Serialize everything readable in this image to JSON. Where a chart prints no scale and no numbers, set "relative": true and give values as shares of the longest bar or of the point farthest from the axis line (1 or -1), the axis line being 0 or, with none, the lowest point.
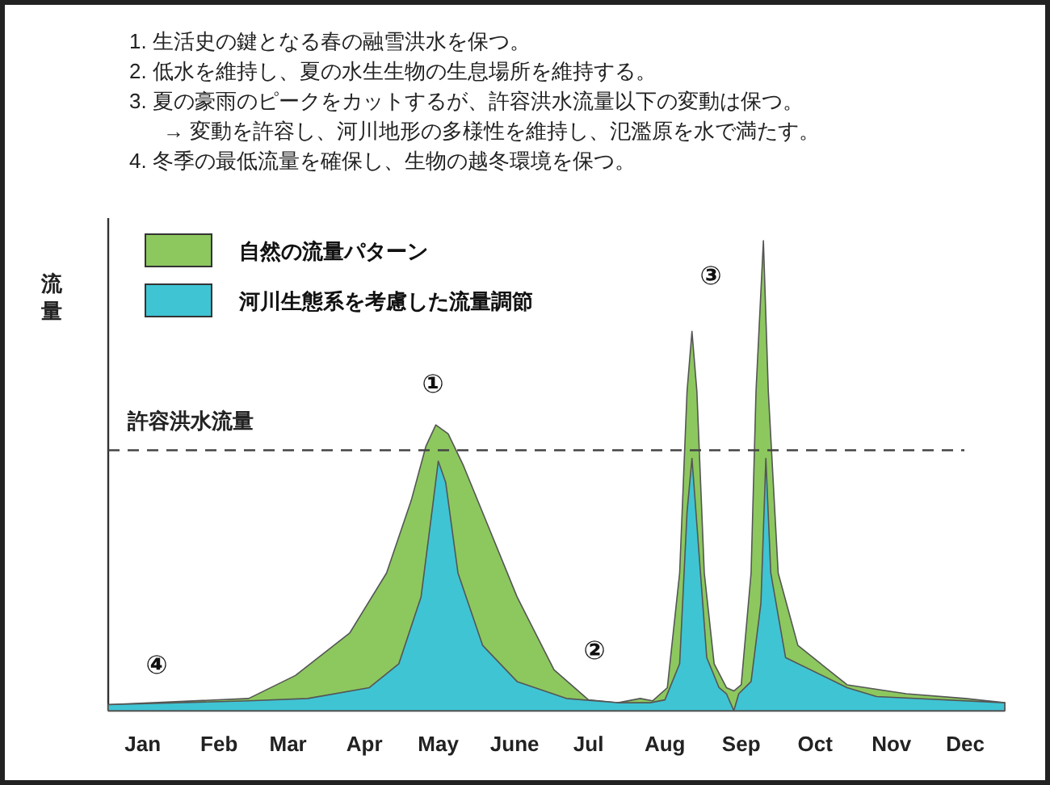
{
  "chart_data": {
    "type": "area",
    "relative": true,
    "ylabel": "流量",
    "legend": "top left",
    "xlim": [
      "--01-01",
      "--12-31"
    ],
    "xticks": [
      {
        "value": "--01-15",
        "label": "Jan"
      },
      {
        "value": "--02-15",
        "label": "Feb"
      },
      {
        "value": "--03-15",
        "label": "Mar"
      },
      {
        "value": "--04-15",
        "label": "Apr"
      },
      {
        "value": "--05-15",
        "label": "May"
      },
      {
        "value": "--06-15",
        "label": "June"
      },
      {
        "value": "--07-15",
        "label": "Jul"
      },
      {
        "value": "--08-15",
        "label": "Aug"
      },
      {
        "value": "--09-15",
        "label": "Sep"
      },
      {
        "value": "--10-15",
        "label": "Oct"
      },
      {
        "value": "--11-15",
        "label": "Nov"
      },
      {
        "value": "--12-15",
        "label": "Dec"
      }
    ],
    "series": [
      {
        "name": "自然の流量パターン",
        "color": "#8dc85f",
        "x": [
          "--01-01",
          "--02-27",
          "--03-18",
          "--04-09",
          "--04-24",
          "--05-04",
          "--05-10",
          "--05-14",
          "--05-19",
          "--05-25",
          "--06-04",
          "--06-16",
          "--07-01",
          "--07-15",
          "--07-27",
          "--08-05",
          "--08-10",
          "--08-16",
          "--08-21",
          "--08-24",
          "--08-26",
          "--08-28",
          "--08-31",
          "--09-04",
          "--09-09",
          "--09-12",
          "--09-15",
          "--09-19",
          "--09-21",
          "--09-24",
          "--09-26",
          "--09-30",
          "--10-08",
          "--10-28",
          "--11-21",
          "--12-15",
          "--12-31"
        ],
        "values": [
          0.013,
          0.026,
          0.075,
          0.165,
          0.293,
          0.447,
          0.563,
          0.608,
          0.589,
          0.524,
          0.396,
          0.242,
          0.087,
          0.023,
          0.017,
          0.026,
          0.021,
          0.049,
          0.293,
          0.679,
          0.807,
          0.679,
          0.293,
          0.1,
          0.049,
          0.042,
          0.055,
          0.293,
          0.679,
          1,
          0.679,
          0.293,
          0.139,
          0.055,
          0.036,
          0.026,
          0.017
        ]
      },
      {
        "name": "河川生態系を考慮した流量調節",
        "color": "#3fc4d4",
        "x": [
          "--01-01",
          "--02-27",
          "--03-23",
          "--04-17",
          "--04-29",
          "--05-08",
          "--05-13",
          "--05-15",
          "--05-18",
          "--05-23",
          "--06-02",
          "--06-16",
          "--07-06",
          "--07-27",
          "--08-09",
          "--08-15",
          "--08-21",
          "--08-24",
          "--08-26",
          "--08-28",
          "--09-01",
          "--09-06",
          "--09-09",
          "--09-12",
          "--09-14",
          "--09-19",
          "--09-23",
          "--09-25",
          "--09-27",
          "--10-03",
          "--10-28",
          "--11-09",
          "--12-31"
        ],
        "values": [
          0.013,
          0.021,
          0.026,
          0.049,
          0.1,
          0.242,
          0.447,
          0.531,
          0.486,
          0.293,
          0.139,
          0.062,
          0.026,
          0.017,
          0.017,
          0.023,
          0.1,
          0.422,
          0.537,
          0.396,
          0.113,
          0.049,
          0.036,
          0,
          0.036,
          0.062,
          0.229,
          0.537,
          0.293,
          0.113,
          0.049,
          0.03,
          0.017
        ]
      }
    ],
    "ref_lines": [
      {
        "axis": "y",
        "value": 0.554,
        "label": "許容洪水流量",
        "line_style": "dashed"
      }
    ],
    "annotations": [
      "1.  生活史の鍵となる春の融雪洪水を保つ。",
      "2.  低水を維持し、夏の水生生物の生息場所を維持する。",
      "3.  夏の豪雨のピークをカットするが、許容洪水流量以下の変動は保つ。",
      "→  変動を許容し、河川地形の多様性を維持し、氾濫原を水で満たす。",
      "4.  冬季の最低流量を確保し、生物の越冬環境を保つ。",
      "①",
      "②",
      "③",
      "④"
    ]
  }
}
